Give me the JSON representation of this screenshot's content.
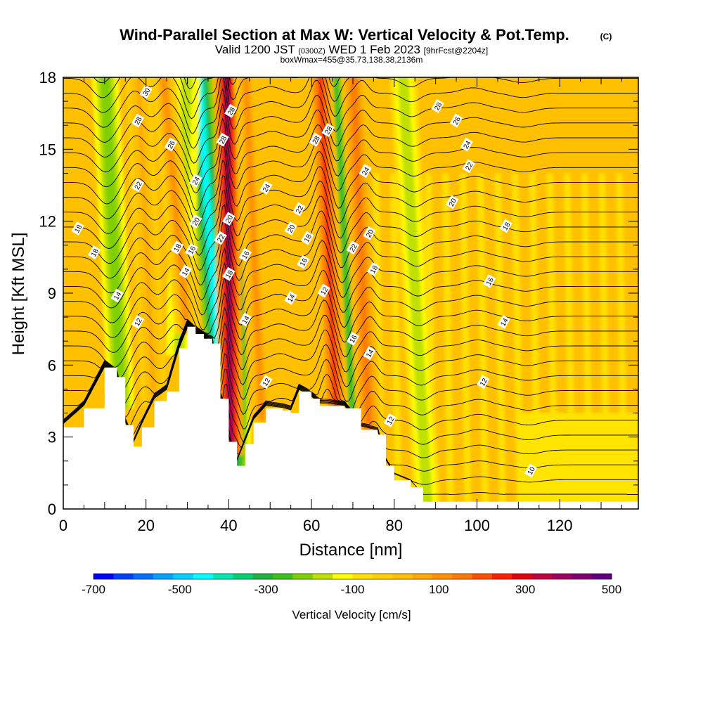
{
  "chart_data": {
    "type": "heatmap",
    "title": "Wind-Parallel Section at Max W: Vertical Velocity & Pot.Temp.",
    "title_mark": "(C)",
    "subtitle_parts": [
      "Valid 1200 JST",
      "(0300Z)",
      "WED 1 Feb 2023",
      "[9hrFcst@2204z]"
    ],
    "subtitle2": "boxWmax=455@35.73,138.38,2136m",
    "xlabel": "Distance [nm]",
    "ylabel": "Height [Kft MSL]",
    "xlim": [
      0,
      139
    ],
    "ylim": [
      0,
      18
    ],
    "x_ticks": [
      0,
      20,
      40,
      60,
      80,
      100,
      120
    ],
    "y_ticks": [
      0,
      3,
      6,
      9,
      12,
      15,
      18
    ],
    "colorbar": {
      "label": "Vertical Velocity [cm/s]",
      "tick_labels": [
        "-700",
        "-500",
        "-300",
        "-100",
        "100",
        "300",
        "500"
      ],
      "colors": [
        "#0000ff",
        "#0040ff",
        "#0070ff",
        "#00a0ff",
        "#00d0ff",
        "#00ffff",
        "#00e8b0",
        "#00d070",
        "#20b040",
        "#40c020",
        "#80d000",
        "#c0e000",
        "#ffff00",
        "#ffe000",
        "#ffd000",
        "#ffc000",
        "#ffa800",
        "#ff9000",
        "#ff7800",
        "#ff5000",
        "#ff2000",
        "#e00010",
        "#c00040",
        "#a00060",
        "#800070",
        "#600080"
      ]
    },
    "terrain": [
      [
        0,
        3.4
      ],
      [
        5,
        4.2
      ],
      [
        10,
        5.9
      ],
      [
        13,
        5.5
      ],
      [
        15,
        3.5
      ],
      [
        17,
        2.6
      ],
      [
        19,
        3.4
      ],
      [
        22,
        4.5
      ],
      [
        25,
        4.9
      ],
      [
        28,
        6.7
      ],
      [
        30,
        7.6
      ],
      [
        32,
        7.3
      ],
      [
        34,
        7.1
      ],
      [
        36,
        6.9
      ],
      [
        38,
        4.6
      ],
      [
        40,
        2.8
      ],
      [
        42,
        1.8
      ],
      [
        44,
        2.7
      ],
      [
        46,
        3.6
      ],
      [
        49,
        4.2
      ],
      [
        53,
        4.1
      ],
      [
        55,
        4.0
      ],
      [
        57,
        4.9
      ],
      [
        60,
        4.6
      ],
      [
        62,
        4.3
      ],
      [
        68,
        4.2
      ],
      [
        72,
        3.3
      ],
      [
        76,
        3.1
      ],
      [
        78,
        1.8
      ],
      [
        80,
        1.2
      ],
      [
        84,
        0.9
      ],
      [
        87,
        0.3
      ],
      [
        139,
        0.3
      ]
    ],
    "updrafts": [
      {
        "x_bottom": 40.5,
        "x_top": 39.5,
        "w": 480
      },
      {
        "x_bottom": 66,
        "x_top": 62,
        "w": 300
      },
      {
        "x_bottom": 48,
        "x_top": 44,
        "w": 180
      },
      {
        "x_bottom": 30,
        "x_top": 24,
        "w": 150
      },
      {
        "x_bottom": 74,
        "x_top": 70,
        "w": 220
      },
      {
        "x_bottom": 22,
        "x_top": 18,
        "w": 120
      }
    ],
    "downdrafts": [
      {
        "x_bottom": 38.5,
        "x_top": 32.5,
        "w": -450
      },
      {
        "x_bottom": 42,
        "x_top": 44,
        "w": -280
      },
      {
        "x_bottom": 70,
        "x_top": 65,
        "w": -250
      },
      {
        "x_bottom": 14,
        "x_top": 10,
        "w": -180
      },
      {
        "x_bottom": 28,
        "x_top": 30,
        "w": -150
      },
      {
        "x_bottom": 88,
        "x_top": 82,
        "w": -120
      }
    ],
    "contour_labels": [
      {
        "text": "30",
        "x": 20,
        "y": 17.4
      },
      {
        "text": "28",
        "x": 18,
        "y": 16.2
      },
      {
        "text": "26",
        "x": 26,
        "y": 15.2
      },
      {
        "text": "24",
        "x": 32,
        "y": 13.7
      },
      {
        "text": "22",
        "x": 18,
        "y": 13.5
      },
      {
        "text": "20",
        "x": 32,
        "y": 12.0
      },
      {
        "text": "18",
        "x": 3.5,
        "y": 11.7
      },
      {
        "text": "18",
        "x": 7.5,
        "y": 10.7
      },
      {
        "text": "18",
        "x": 27.5,
        "y": 10.9
      },
      {
        "text": "16",
        "x": 31,
        "y": 10.8
      },
      {
        "text": "14",
        "x": 29.5,
        "y": 9.9
      },
      {
        "text": "14",
        "x": 13,
        "y": 8.9
      },
      {
        "text": "12",
        "x": 18,
        "y": 7.8
      },
      {
        "text": "28",
        "x": 40.5,
        "y": 16.6
      },
      {
        "text": "28",
        "x": 38.5,
        "y": 15.4
      },
      {
        "text": "20",
        "x": 40,
        "y": 12.1
      },
      {
        "text": "22",
        "x": 38,
        "y": 11.3
      },
      {
        "text": "18",
        "x": 40,
        "y": 9.8
      },
      {
        "text": "16",
        "x": 44,
        "y": 10.6
      },
      {
        "text": "14",
        "x": 44,
        "y": 7.9
      },
      {
        "text": "12",
        "x": 49,
        "y": 5.3
      },
      {
        "text": "24",
        "x": 49,
        "y": 13.4
      },
      {
        "text": "22",
        "x": 57,
        "y": 12.5
      },
      {
        "text": "20",
        "x": 55,
        "y": 11.7
      },
      {
        "text": "18",
        "x": 59,
        "y": 11.3
      },
      {
        "text": "16",
        "x": 58,
        "y": 10.3
      },
      {
        "text": "14",
        "x": 55,
        "y": 8.8
      },
      {
        "text": "12",
        "x": 63,
        "y": 9.1
      },
      {
        "text": "28",
        "x": 61,
        "y": 15.4
      },
      {
        "text": "28",
        "x": 64,
        "y": 15.8
      },
      {
        "text": "24",
        "x": 73,
        "y": 14.1
      },
      {
        "text": "22",
        "x": 70,
        "y": 10.9
      },
      {
        "text": "20",
        "x": 74,
        "y": 11.5
      },
      {
        "text": "18",
        "x": 75,
        "y": 10.0
      },
      {
        "text": "16",
        "x": 70,
        "y": 7.1
      },
      {
        "text": "14",
        "x": 74,
        "y": 6.5
      },
      {
        "text": "12",
        "x": 79,
        "y": 3.7
      },
      {
        "text": "28",
        "x": 90.5,
        "y": 16.8
      },
      {
        "text": "26",
        "x": 95,
        "y": 16.2
      },
      {
        "text": "24",
        "x": 97.5,
        "y": 15.2
      },
      {
        "text": "22",
        "x": 98,
        "y": 14.3
      },
      {
        "text": "20",
        "x": 94,
        "y": 12.8
      },
      {
        "text": "18",
        "x": 107,
        "y": 11.8
      },
      {
        "text": "16",
        "x": 103,
        "y": 9.5
      },
      {
        "text": "14",
        "x": 106.5,
        "y": 7.8
      },
      {
        "text": "12",
        "x": 101.5,
        "y": 5.3
      },
      {
        "text": "10",
        "x": 113,
        "y": 1.6
      }
    ]
  }
}
